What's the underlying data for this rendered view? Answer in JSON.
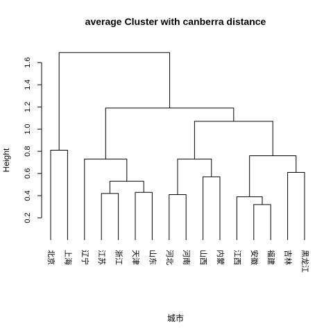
{
  "chart_data": {
    "type": "dendrogram",
    "title": "average Cluster with canberra distance",
    "ylabel": "Height",
    "xlabel": "城市",
    "yticks": [
      0.2,
      0.4,
      0.6,
      0.8,
      1.0,
      1.2,
      1.4,
      1.6
    ],
    "ylim": [
      0.0,
      1.72
    ],
    "leaves": [
      "北京",
      "上海",
      "辽宁",
      "江苏",
      "浙江",
      "天津",
      "山东",
      "河北",
      "河南",
      "山西",
      "内蒙",
      "江西",
      "安徽",
      "福建",
      "吉林",
      "黑龙江"
    ],
    "merges": [
      {
        "id": "m1",
        "left": "北京",
        "right": "上海",
        "height": 0.81
      },
      {
        "id": "m2",
        "left": "江苏",
        "right": "浙江",
        "height": 0.42
      },
      {
        "id": "m3",
        "left": "天津",
        "right": "山东",
        "height": 0.43
      },
      {
        "id": "m4",
        "left": "m2",
        "right": "m3",
        "height": 0.53
      },
      {
        "id": "m5",
        "left": "辽宁",
        "right": "m4",
        "height": 0.73
      },
      {
        "id": "m6",
        "left": "河北",
        "right": "河南",
        "height": 0.41
      },
      {
        "id": "m7",
        "left": "山西",
        "right": "内蒙",
        "height": 0.57
      },
      {
        "id": "m8",
        "left": "m6",
        "right": "m7",
        "height": 0.73
      },
      {
        "id": "m9",
        "left": "安徽",
        "right": "福建",
        "height": 0.32
      },
      {
        "id": "m10",
        "left": "江西",
        "right": "m9",
        "height": 0.39
      },
      {
        "id": "m11",
        "left": "吉林",
        "right": "黑龙江",
        "height": 0.61
      },
      {
        "id": "m12",
        "left": "m10",
        "right": "m11",
        "height": 0.76
      },
      {
        "id": "m13",
        "left": "m8",
        "right": "m12",
        "height": 1.07
      },
      {
        "id": "m14",
        "left": "m5",
        "right": "m13",
        "height": 1.19
      },
      {
        "id": "m15",
        "left": "m1",
        "right": "m14",
        "height": 1.69
      }
    ]
  }
}
